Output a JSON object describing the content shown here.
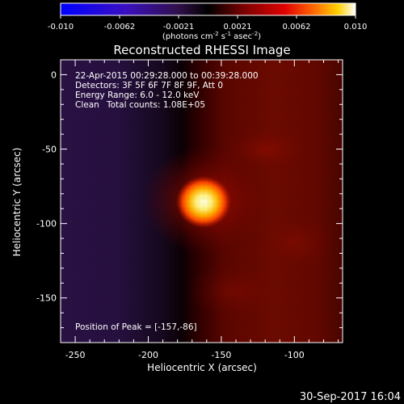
{
  "title": "Reconstructed RHESSI Image",
  "colorbar": {
    "ticks": [
      "-0.010",
      "-0.0062",
      "-0.0021",
      "0.0021",
      "0.0062",
      "0.010"
    ],
    "units_base": "(photons cm",
    "units_exp1": "-2",
    "units_mid": " s",
    "units_exp2": "-1",
    "units_mid2": " asec",
    "units_exp3": "-2",
    "units_end": ")"
  },
  "annotations": {
    "time_range": "22-Apr-2015 00:29:28.000 to 00:39:28.000",
    "detectors": "Detectors: 3F 5F 6F 7F 8F 9F, Att 0",
    "energy": "Energy Range: 6.0 - 12.0 keV",
    "clean_label": "Clean",
    "total_counts": "Total counts: 1.08E+05",
    "peak": "Position of Peak = [-157,-86]"
  },
  "axes": {
    "xlabel": "Heliocentric X (arcsec)",
    "ylabel": "Heliocentric Y (arcsec)",
    "x_ticks": [
      "-250",
      "-200",
      "-150",
      "-100"
    ],
    "y_ticks": [
      "0",
      "-50",
      "-100",
      "-150"
    ]
  },
  "footer_date": "30-Sep-2017 16:04",
  "chart_data": {
    "type": "heatmap",
    "title": "Reconstructed RHESSI Image",
    "xlabel": "Heliocentric X (arcsec)",
    "ylabel": "Heliocentric Y (arcsec)",
    "xlim": [
      -260,
      -67
    ],
    "ylim": [
      -180,
      10
    ],
    "colorbar_range": [
      -0.01,
      0.01
    ],
    "colormap": "blue-purple-black-red-yellow-white",
    "peak": {
      "x": -157,
      "y": -86
    }
  }
}
